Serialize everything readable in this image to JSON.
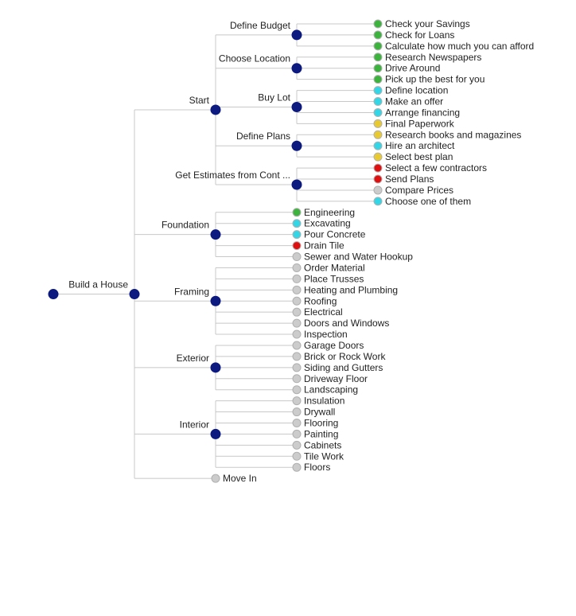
{
  "status_colors": {
    "done": "#3cb33c",
    "active": "#33d6e6",
    "pending": "#e8c930",
    "blocked": "#e01010",
    "not_started": "#cccccc"
  },
  "node_color": "#0d1a80",
  "tree": {
    "label": "",
    "children": [
      {
        "label": "Build a House",
        "children": [
          {
            "label": "Start",
            "children": [
              {
                "label": "Define Budget",
                "children": [
                  {
                    "label": "Check your Savings",
                    "status": "done"
                  },
                  {
                    "label": "Check for Loans",
                    "status": "done"
                  },
                  {
                    "label": "Calculate how much you can afford",
                    "status": "done"
                  }
                ]
              },
              {
                "label": "Choose Location",
                "children": [
                  {
                    "label": "Research Newspapers",
                    "status": "done"
                  },
                  {
                    "label": "Drive Around",
                    "status": "done"
                  },
                  {
                    "label": "Pick up the best for you",
                    "status": "done"
                  }
                ]
              },
              {
                "label": "Buy Lot",
                "children": [
                  {
                    "label": "Define location",
                    "status": "active"
                  },
                  {
                    "label": "Make an offer",
                    "status": "active"
                  },
                  {
                    "label": "Arrange financing",
                    "status": "active"
                  },
                  {
                    "label": "Final Paperwork",
                    "status": "pending"
                  }
                ]
              },
              {
                "label": "Define Plans",
                "children": [
                  {
                    "label": "Research books and magazines",
                    "status": "pending"
                  },
                  {
                    "label": "Hire an architect",
                    "status": "active"
                  },
                  {
                    "label": "Select best plan",
                    "status": "pending"
                  }
                ]
              },
              {
                "label": "Get Estimates from Cont ...",
                "children": [
                  {
                    "label": "Select a few contractors",
                    "status": "blocked"
                  },
                  {
                    "label": "Send Plans",
                    "status": "blocked"
                  },
                  {
                    "label": "Compare Prices",
                    "status": "not_started"
                  },
                  {
                    "label": "Choose one of them",
                    "status": "active"
                  }
                ]
              }
            ]
          },
          {
            "label": "Foundation",
            "children": [
              {
                "label": "Engineering",
                "status": "done"
              },
              {
                "label": "Excavating",
                "status": "active"
              },
              {
                "label": "Pour Concrete",
                "status": "active"
              },
              {
                "label": "Drain Tile",
                "status": "blocked"
              },
              {
                "label": "Sewer and Water Hookup",
                "status": "not_started"
              }
            ]
          },
          {
            "label": "Framing",
            "children": [
              {
                "label": "Order Material",
                "status": "not_started"
              },
              {
                "label": "Place Trusses",
                "status": "not_started"
              },
              {
                "label": "Heating and Plumbing",
                "status": "not_started"
              },
              {
                "label": "Roofing",
                "status": "not_started"
              },
              {
                "label": "Electrical",
                "status": "not_started"
              },
              {
                "label": "Doors and Windows",
                "status": "not_started"
              },
              {
                "label": "Inspection",
                "status": "not_started"
              }
            ]
          },
          {
            "label": "Exterior",
            "children": [
              {
                "label": "Garage Doors",
                "status": "not_started"
              },
              {
                "label": "Brick or Rock Work",
                "status": "not_started"
              },
              {
                "label": "Siding and Gutters",
                "status": "not_started"
              },
              {
                "label": "Driveway Floor",
                "status": "not_started"
              },
              {
                "label": "Landscaping",
                "status": "not_started"
              }
            ]
          },
          {
            "label": "Interior",
            "children": [
              {
                "label": "Insulation",
                "status": "not_started"
              },
              {
                "label": "Drywall",
                "status": "not_started"
              },
              {
                "label": "Flooring",
                "status": "not_started"
              },
              {
                "label": "Painting",
                "status": "not_started"
              },
              {
                "label": "Cabinets",
                "status": "not_started"
              },
              {
                "label": "Tile Work",
                "status": "not_started"
              },
              {
                "label": "Floors",
                "status": "not_started"
              }
            ]
          },
          {
            "label": "Move In",
            "status": "not_started"
          }
        ]
      }
    ]
  }
}
